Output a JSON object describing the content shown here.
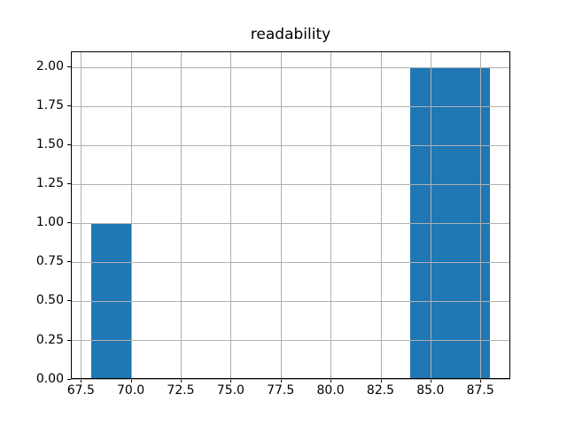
{
  "chart_data": {
    "type": "bar",
    "subtype": "histogram",
    "title": "readability",
    "xlabel": "",
    "ylabel": "",
    "bin_edges": [
      68,
      70,
      72,
      74,
      76,
      78,
      80,
      82,
      84,
      86,
      88
    ],
    "counts": [
      1,
      0,
      0,
      0,
      0,
      0,
      0,
      0,
      2,
      2
    ],
    "xlim": [
      67,
      89
    ],
    "ylim": [
      0,
      2.1
    ],
    "xticks": [
      67.5,
      70.0,
      72.5,
      75.0,
      77.5,
      80.0,
      82.5,
      85.0,
      87.5
    ],
    "xtick_labels": [
      "67.5",
      "70.0",
      "72.5",
      "75.0",
      "77.5",
      "80.0",
      "82.5",
      "85.0",
      "87.5"
    ],
    "yticks": [
      0.0,
      0.25,
      0.5,
      0.75,
      1.0,
      1.25,
      1.5,
      1.75,
      2.0
    ],
    "ytick_labels": [
      "0.00",
      "0.25",
      "0.50",
      "0.75",
      "1.00",
      "1.25",
      "1.50",
      "1.75",
      "2.00"
    ],
    "grid": true,
    "grid_above_bars": true,
    "legend": null,
    "colors": {
      "bar": "#1f77b4",
      "grid": "#b0b0b0",
      "spine": "#000000",
      "text": "#000000",
      "background": "#ffffff"
    }
  }
}
